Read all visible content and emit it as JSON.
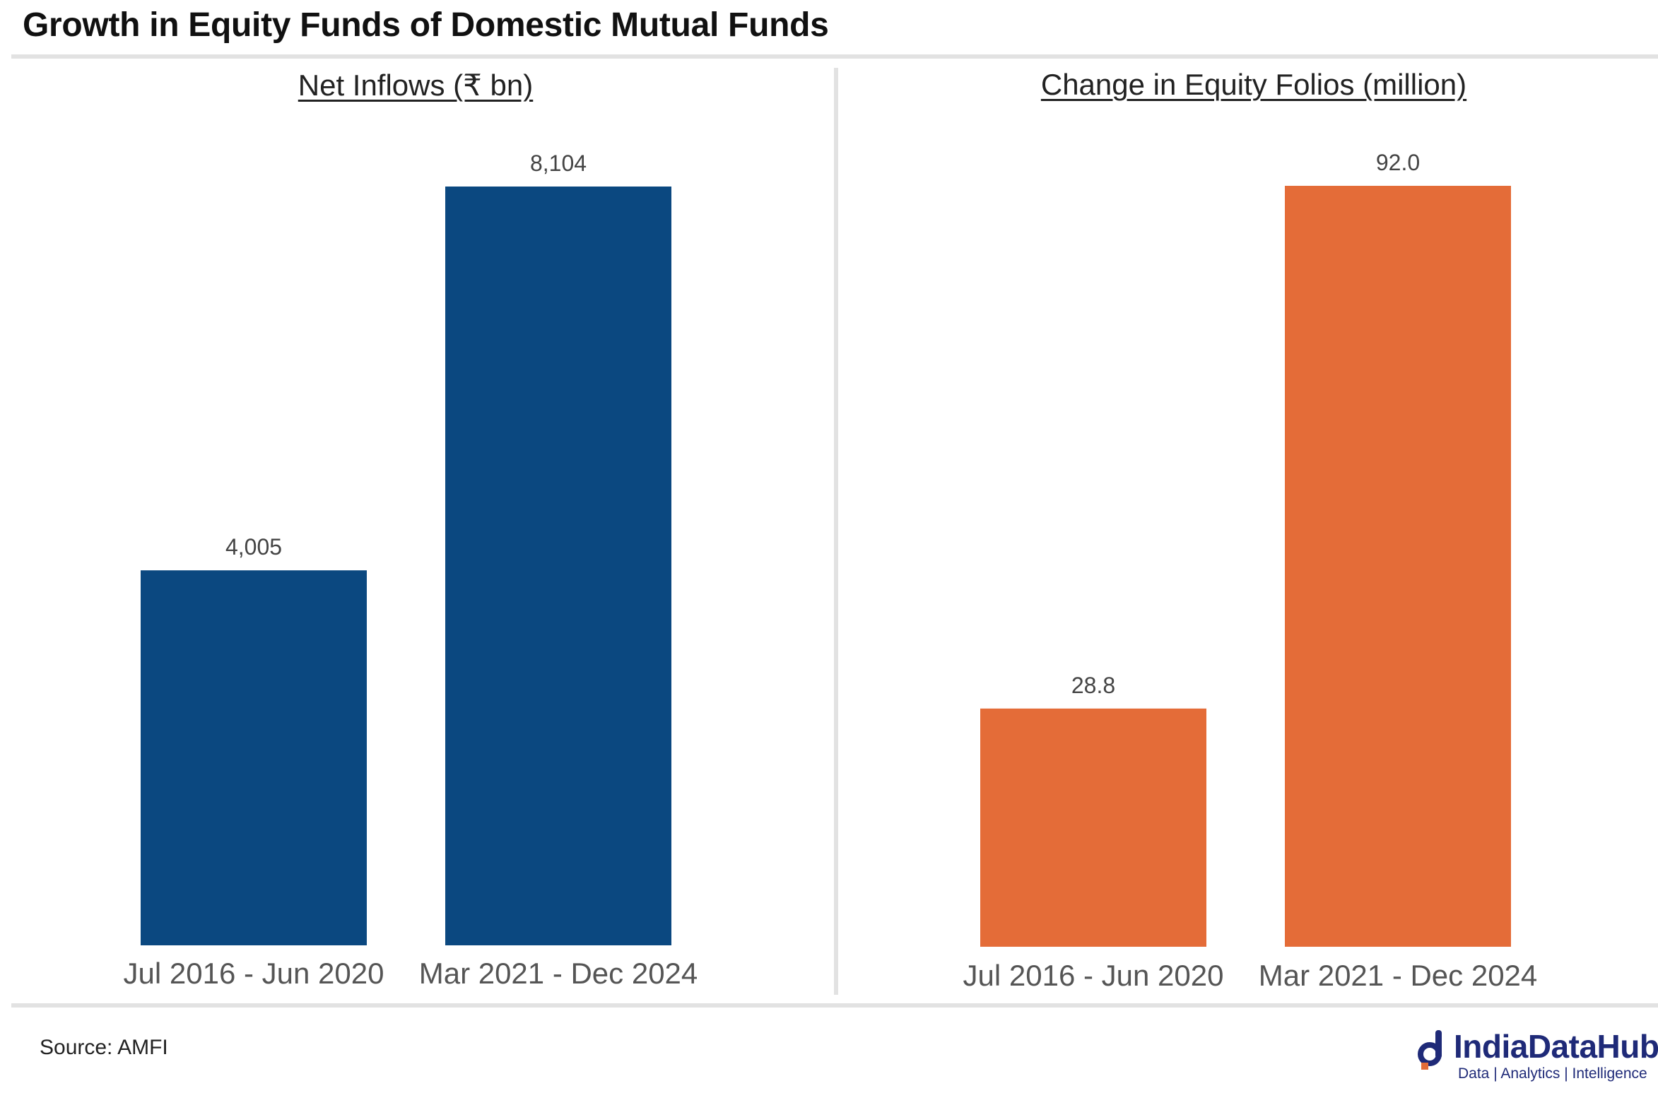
{
  "title": "Growth in Equity Funds of Domestic Mutual Funds",
  "source": "Source: AMFI",
  "logo": {
    "name": "IndiaDataHub",
    "tagline": "Data | Analytics | Intelligence",
    "color": "#1f2a78"
  },
  "chart_data": [
    {
      "type": "bar",
      "title": "Net Inflows (₹ bn)",
      "categories": [
        "Jul 2016 - Jun 2020",
        "Mar 2021 - Dec 2024"
      ],
      "values": [
        4005,
        8104
      ],
      "value_labels": [
        "4,005",
        "8,104"
      ],
      "color": "#0b4880",
      "ylim": [
        0,
        8104
      ],
      "grid": false,
      "legend": "none"
    },
    {
      "type": "bar",
      "title": "Change in Equity Folios (million)",
      "categories": [
        "Jul 2016 - Jun 2020",
        "Mar 2021 - Dec 2024"
      ],
      "values": [
        28.8,
        92.0
      ],
      "value_labels": [
        "28.8",
        "92.0"
      ],
      "color": "#e46c38",
      "ylim": [
        0,
        92.0
      ],
      "grid": false,
      "legend": "none"
    }
  ]
}
